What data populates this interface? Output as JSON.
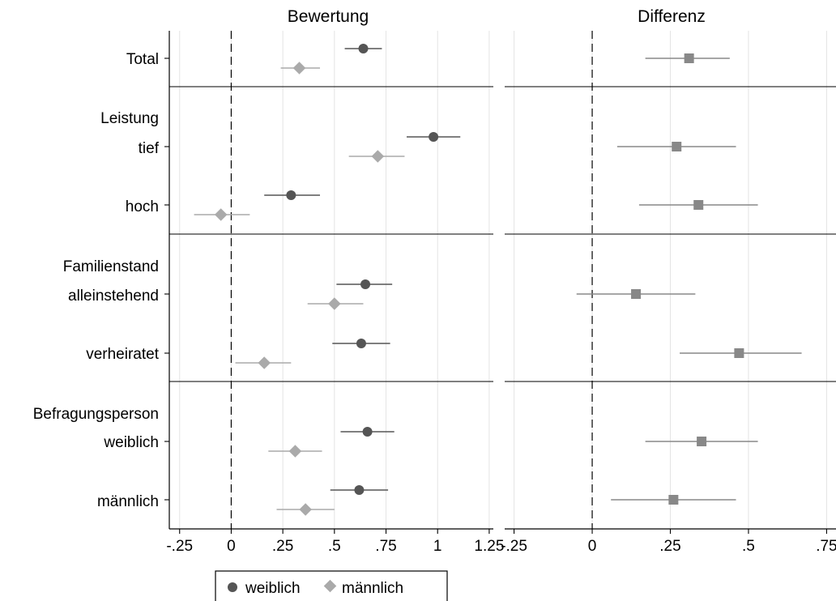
{
  "chart_data": [
    {
      "type": "scatter",
      "title": "Bewertung",
      "xlim": [
        -0.3,
        1.27
      ],
      "x_ticks": [
        -0.25,
        0,
        0.25,
        0.5,
        0.75,
        1,
        1.25
      ],
      "x_tick_labels": [
        "-.25",
        "0",
        ".25",
        ".5",
        ".75",
        "1",
        "1.25"
      ],
      "reference_line": 0,
      "series": [
        {
          "name": "weiblich",
          "marker": "circle",
          "color": "#555555",
          "rows": [
            "Total",
            "tief",
            "hoch",
            "alleinstehend",
            "verheiratet",
            "weiblich",
            "männlich"
          ],
          "values": [
            0.64,
            0.98,
            0.29,
            0.65,
            0.63,
            0.66,
            0.62
          ],
          "ci_low": [
            0.55,
            0.85,
            0.16,
            0.51,
            0.49,
            0.53,
            0.48
          ],
          "ci_high": [
            0.73,
            1.11,
            0.43,
            0.78,
            0.77,
            0.79,
            0.76
          ]
        },
        {
          "name": "männlich",
          "marker": "diamond",
          "color": "#aaaaaa",
          "rows": [
            "Total",
            "tief",
            "hoch",
            "alleinstehend",
            "verheiratet",
            "weiblich",
            "männlich"
          ],
          "values": [
            0.33,
            0.71,
            -0.05,
            0.5,
            0.16,
            0.31,
            0.36
          ],
          "ci_low": [
            0.24,
            0.57,
            -0.18,
            0.37,
            0.02,
            0.18,
            0.22
          ],
          "ci_high": [
            0.43,
            0.84,
            0.09,
            0.64,
            0.29,
            0.44,
            0.5
          ]
        }
      ]
    },
    {
      "type": "scatter",
      "title": "Differenz",
      "xlim": [
        -0.28,
        0.78
      ],
      "x_ticks": [
        -0.25,
        0,
        0.25,
        0.5,
        0.75
      ],
      "x_tick_labels": [
        "-.25",
        "0",
        ".25",
        ".5",
        ".75"
      ],
      "reference_line": 0,
      "series": [
        {
          "marker": "square",
          "color": "#888888",
          "rows": [
            "Total",
            "tief",
            "hoch",
            "alleinstehend",
            "verheiratet",
            "weiblich",
            "männlich"
          ],
          "values": [
            0.31,
            0.27,
            0.34,
            0.14,
            0.47,
            0.35,
            0.26
          ],
          "ci_low": [
            0.17,
            0.08,
            0.15,
            -0.05,
            0.28,
            0.17,
            0.06
          ],
          "ci_high": [
            0.44,
            0.46,
            0.53,
            0.33,
            0.67,
            0.53,
            0.46
          ]
        }
      ]
    }
  ],
  "labels": {
    "total": "Total",
    "group1": "Leistung",
    "tief": "tief",
    "hoch": "hoch",
    "group2": "Familienstand",
    "alleinstehend": "alleinstehend",
    "verheiratet": "verheiratet",
    "group3": "Befragungsperson",
    "weiblich": "weiblich",
    "maennlich": "männlich"
  },
  "legend": {
    "position": "bottom",
    "items": [
      {
        "label": "weiblich",
        "marker": "circle",
        "color": "#555555"
      },
      {
        "label": "männlich",
        "marker": "diamond",
        "color": "#aaaaaa"
      }
    ]
  }
}
